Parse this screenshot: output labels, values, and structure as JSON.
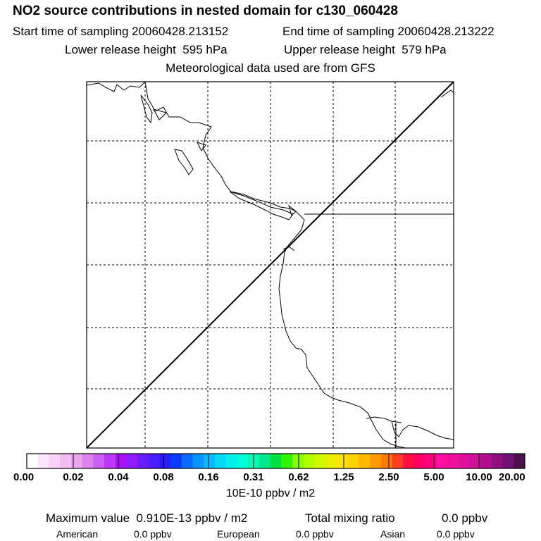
{
  "header": {
    "title": "NO2 source contributions in nested domain for c130_060428",
    "start_label": "Start time of sampling",
    "start_value": "20060428.213152",
    "end_label": "End time of sampling",
    "end_value": "20060428.213222",
    "lower_label": "Lower release height",
    "lower_value": "595 hPa",
    "upper_label": "Upper release height",
    "upper_value": "579 hPa",
    "met_note": "Meteorological data used are from GFS"
  },
  "colorbar": {
    "tick_labels": [
      "0.00",
      "0.02",
      "0.04",
      "0.08",
      "0.16",
      "0.31",
      "0.62",
      "1.25",
      "2.50",
      "5.00",
      "10.00",
      "20.00"
    ],
    "units": "10E-10 ppbv / m2",
    "colors": [
      "#ffffff",
      "#fde6fd",
      "#f9d2f9",
      "#f3bdf3",
      "#eba6f0",
      "#dd84ee",
      "#cc60f0",
      "#bb38f5",
      "#ab10fb",
      "#8d1cff",
      "#6a1cff",
      "#4a1cff",
      "#2a1cff",
      "#0a3cff",
      "#0a6cff",
      "#0a94ff",
      "#0ab8ff",
      "#06d8f8",
      "#00f0ec",
      "#00fcd8",
      "#00fab4",
      "#00e890",
      "#00e040",
      "#30f400",
      "#88fc00",
      "#b0fc00",
      "#d0f800",
      "#e8f000",
      "#f8e400",
      "#ffd400",
      "#ffb800",
      "#ff9a00",
      "#ff7c00",
      "#ff4020",
      "#ff1040",
      "#ff0060",
      "#ff0080",
      "#ff10a0",
      "#f010a0",
      "#e0109c",
      "#d01098",
      "#b01090",
      "#901080",
      "#701070",
      "#501050"
    ]
  },
  "stats": {
    "max_label": "Maximum value",
    "max_value": "0.910E-13 ppbv / m2",
    "total_label": "Total mixing ratio",
    "total_value": "0.0 ppbv"
  },
  "sources": {
    "american_label": "American",
    "american_value": "0.0 ppbv",
    "european_label": "European",
    "european_value": "0.0 ppbv",
    "asian_label": "Asian",
    "asian_value": "0.0 ppbv"
  }
}
